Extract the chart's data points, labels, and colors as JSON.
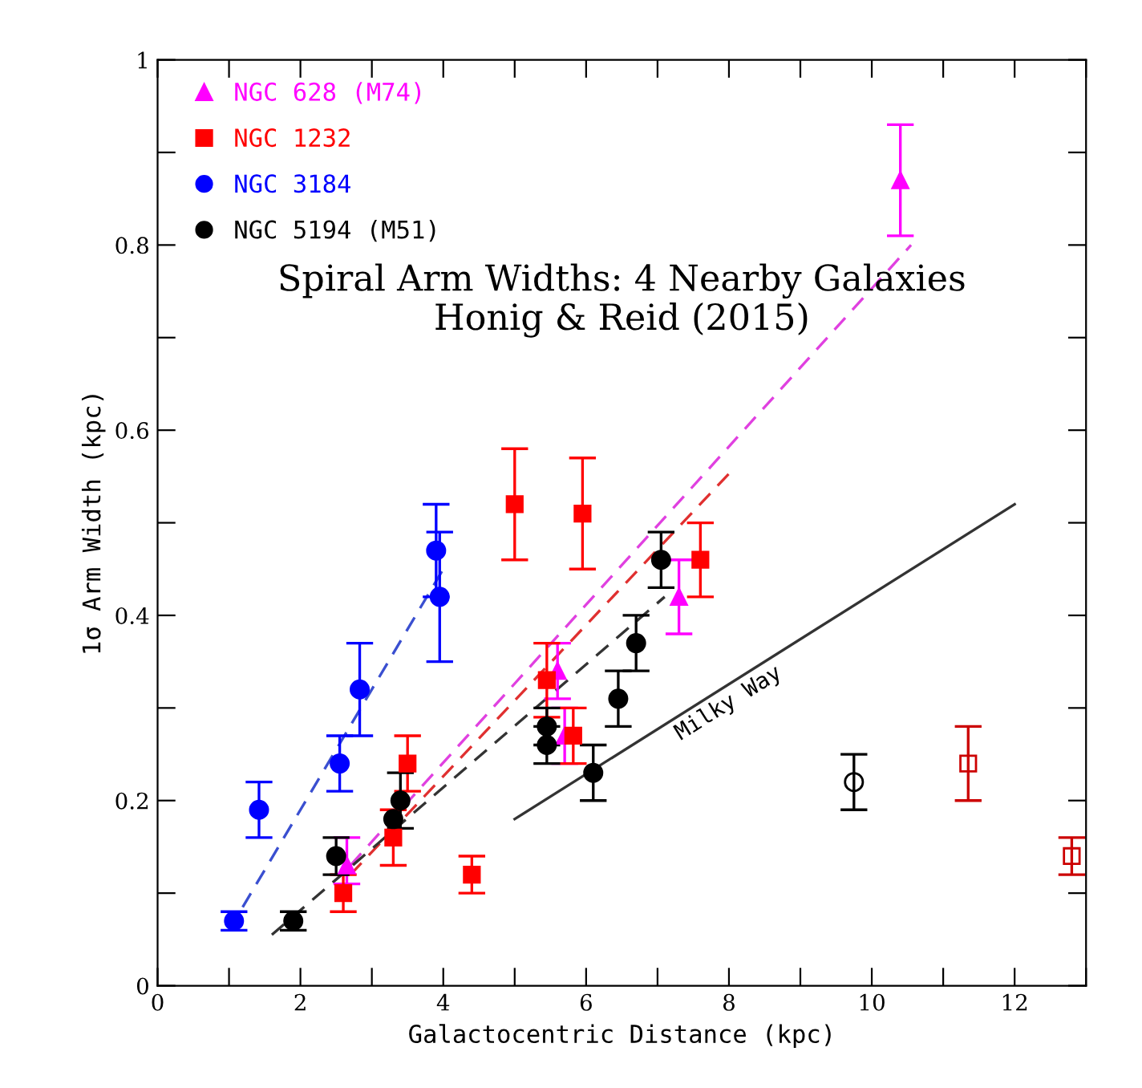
{
  "chart_data": {
    "type": "scatter",
    "title": "Spiral Arm Widths: 4 Nearby Galaxies\nHonig & Reid (2015)",
    "xlabel": "Galactocentric Distance (kpc)",
    "ylabel": "1σ Arm Width (kpc)",
    "xlim": [
      0,
      13
    ],
    "ylim": [
      0,
      1
    ],
    "xticks": [
      0,
      {
        "value": 1,
        "label": null
      },
      2,
      {
        "value": 3,
        "label": null
      },
      4,
      {
        "value": 5,
        "label": null
      },
      6,
      {
        "value": 7,
        "label": null
      },
      8,
      {
        "value": 9,
        "label": null
      },
      10,
      {
        "value": 11,
        "label": null
      },
      12,
      {
        "value": 13,
        "label": null
      }
    ],
    "yticks": [
      0,
      {
        "value": 0.1,
        "label": null
      },
      0.2,
      {
        "value": 0.3,
        "label": null
      },
      0.4,
      {
        "value": 0.5,
        "label": null
      },
      0.6,
      {
        "value": 0.7,
        "label": null
      },
      0.8,
      {
        "value": 0.9,
        "label": null
      },
      1
    ],
    "grid": false,
    "legend": "top left",
    "series": [
      {
        "name": "NGC 628 (M74)",
        "color": "#ff00ff",
        "marker": "triangle",
        "x": [
          2.65,
          5.6,
          5.7,
          7.3,
          10.4
        ],
        "values": [
          0.13,
          0.34,
          0.27,
          0.42,
          0.87
        ],
        "errors": [
          [
            0.11,
            0.16
          ],
          [
            0.31,
            0.37
          ],
          [
            0.24,
            0.3
          ],
          [
            0.38,
            0.46
          ],
          [
            0.81,
            0.93
          ]
        ]
      },
      {
        "name": "NGC 1232",
        "color": "#ff0000",
        "marker": "square",
        "x": [
          2.6,
          3.3,
          3.5,
          4.4,
          5.0,
          5.95,
          5.45,
          5.82,
          7.6
        ],
        "values": [
          0.1,
          0.16,
          0.24,
          0.12,
          0.52,
          0.51,
          0.33,
          0.27,
          0.46
        ],
        "errors": [
          [
            0.08,
            0.12
          ],
          [
            0.13,
            0.19
          ],
          [
            0.21,
            0.27
          ],
          [
            0.1,
            0.14
          ],
          [
            0.46,
            0.58
          ],
          [
            0.45,
            0.57
          ],
          [
            0.29,
            0.37
          ],
          [
            0.24,
            0.3
          ],
          [
            0.42,
            0.5
          ]
        ]
      },
      {
        "name": "NGC 3184",
        "color": "#0000ff",
        "marker": "circle",
        "x": [
          1.07,
          1.42,
          2.55,
          2.83,
          3.9,
          3.95
        ],
        "values": [
          0.07,
          0.19,
          0.24,
          0.32,
          0.47,
          0.42
        ],
        "errors": [
          [
            0.06,
            0.08
          ],
          [
            0.16,
            0.22
          ],
          [
            0.21,
            0.27
          ],
          [
            0.27,
            0.37
          ],
          [
            0.42,
            0.52
          ],
          [
            0.35,
            0.49
          ]
        ]
      },
      {
        "name": "NGC 5194 (M51)",
        "color": "#000000",
        "marker": "circle",
        "x": [
          1.9,
          2.5,
          3.3,
          3.4,
          5.45,
          5.45,
          6.1,
          6.45,
          6.7,
          7.05
        ],
        "values": [
          0.07,
          0.14,
          0.18,
          0.2,
          0.28,
          0.26,
          0.23,
          0.31,
          0.37,
          0.46
        ],
        "errors": [
          [
            0.06,
            0.08
          ],
          [
            0.12,
            0.16
          ],
          null,
          [
            0.17,
            0.23
          ],
          [
            0.28,
            0.3
          ],
          [
            0.24,
            0.26
          ],
          [
            0.2,
            0.26
          ],
          [
            0.28,
            0.34
          ],
          [
            0.34,
            0.4
          ],
          [
            0.43,
            0.49
          ]
        ]
      },
      {
        "color": "#000000",
        "marker": "circle",
        "x": [
          9.75
        ],
        "values": [
          0.22
        ],
        "errors": [
          [
            0.19,
            0.25
          ]
        ]
      },
      {
        "color": "#cc0000",
        "marker": "square",
        "x": [
          11.35,
          12.8
        ],
        "values": [
          0.24,
          0.14
        ],
        "errors": [
          [
            0.2,
            0.28
          ],
          [
            0.12,
            0.16
          ]
        ]
      },
      {
        "type": "line",
        "line_style": "dashed",
        "color": "#e040e0",
        "x": [
          2.7,
          10.55
        ],
        "values": [
          0.13,
          0.8
        ]
      },
      {
        "type": "line",
        "line_style": "dashed",
        "color": "#e03030",
        "x": [
          2.7,
          8.0
        ],
        "values": [
          0.12,
          0.553
        ]
      },
      {
        "type": "line",
        "line_style": "dashed",
        "color": "#3a4fd0",
        "x": [
          1.0,
          4.0
        ],
        "values": [
          0.06,
          0.45
        ]
      },
      {
        "type": "line",
        "line_style": "dashed",
        "color": "#333333",
        "x": [
          1.6,
          7.1
        ],
        "values": [
          0.055,
          0.42
        ]
      },
      {
        "type": "line",
        "line_style": "solid",
        "color": "#333333",
        "x": [
          5.0,
          12.0
        ],
        "values": [
          0.18,
          0.52
        ]
      }
    ],
    "annotations": [
      "Milky Way"
    ]
  }
}
